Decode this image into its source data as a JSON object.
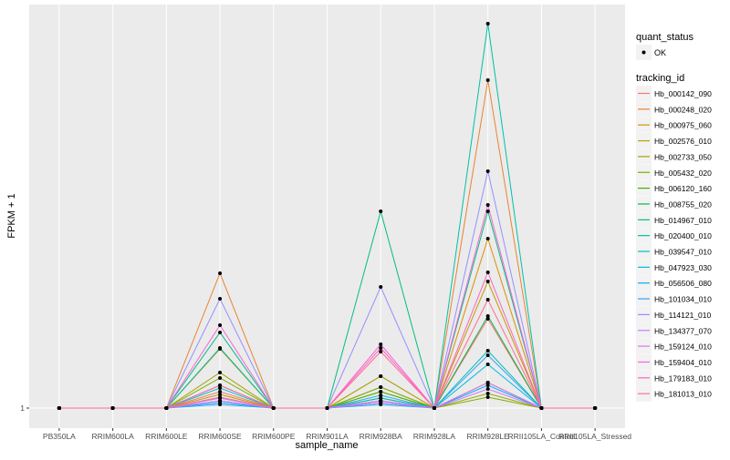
{
  "chart_data": {
    "type": "line",
    "title": "",
    "xlabel": "sample_name",
    "ylabel": "FPKM + 1",
    "y_ticks": [
      "1"
    ],
    "y_tick_values": [
      1
    ],
    "ylim": [
      -0.1,
      23.15
    ],
    "grid": true,
    "legend_placement": "right",
    "categories": [
      "PB350LA",
      "RRIM600LA",
      "RRIM600LE",
      "RRIM600SE",
      "RRIM600PE",
      "RRIM901LA",
      "RRIM928BA",
      "RRIM928LA",
      "RRIM928LE",
      "RRII105LA_Control",
      "RRII105LA_Stressed"
    ],
    "shape_legend": {
      "title": "quant_status",
      "items": [
        "OK"
      ]
    },
    "color_legend_title": "tracking_id",
    "series": [
      {
        "name": "Hb_000142_090",
        "color": "#F8766D",
        "values": [
          1,
          1,
          1,
          1.9,
          1,
          1,
          1.4,
          1,
          5.9,
          1,
          1
        ]
      },
      {
        "name": "Hb_000248_020",
        "color": "#EA8331",
        "values": [
          1,
          1,
          1,
          8.4,
          1,
          1,
          2.75,
          1,
          19.0,
          1,
          1
        ]
      },
      {
        "name": "Hb_000975_060",
        "color": "#D89000",
        "values": [
          1,
          1,
          1,
          4.25,
          1,
          1,
          2.15,
          1,
          10.3,
          1,
          1
        ]
      },
      {
        "name": "Hb_002576_010",
        "color": "#C09B00",
        "values": [
          1,
          1,
          1,
          1.75,
          1,
          1,
          1.9,
          1,
          7.95,
          1,
          1
        ]
      },
      {
        "name": "Hb_002733_050",
        "color": "#A3A500",
        "values": [
          1,
          1,
          1,
          2.95,
          1,
          1,
          2.75,
          1,
          1.8,
          1,
          1
        ]
      },
      {
        "name": "Hb_005432_020",
        "color": "#7CAE00",
        "values": [
          1,
          1,
          1,
          2.65,
          1,
          1,
          2.15,
          1,
          1.6,
          1,
          1
        ]
      },
      {
        "name": "Hb_006120_160",
        "color": "#39B600",
        "values": [
          1,
          1,
          1,
          2.25,
          1,
          1,
          1.9,
          1,
          2.4,
          1,
          1
        ]
      },
      {
        "name": "Hb_008755_020",
        "color": "#00BB4E",
        "values": [
          1,
          1,
          1,
          1.55,
          1,
          1,
          1.55,
          1,
          6.05,
          1,
          1
        ]
      },
      {
        "name": "Hb_014967_010",
        "color": "#00BF7D",
        "values": [
          1,
          1,
          1,
          5.15,
          1,
          1,
          11.8,
          1,
          11.8,
          1,
          1
        ]
      },
      {
        "name": "Hb_020400_010",
        "color": "#00C1A3",
        "values": [
          1,
          1,
          1,
          4.3,
          1,
          1,
          1.55,
          1,
          22.1,
          1,
          1
        ]
      },
      {
        "name": "Hb_039547_010",
        "color": "#00BFC4",
        "values": [
          1,
          1,
          1,
          2.1,
          1,
          1,
          1.4,
          1,
          4.15,
          1,
          1
        ]
      },
      {
        "name": "Hb_047923_030",
        "color": "#00BAE0",
        "values": [
          1,
          1,
          1,
          1.4,
          1,
          1,
          1.3,
          1,
          3.4,
          1,
          1
        ]
      },
      {
        "name": "Hb_056506_080",
        "color": "#00B0F6",
        "values": [
          1,
          1,
          1,
          1.3,
          1,
          1,
          1.2,
          1,
          2.25,
          1,
          1
        ]
      },
      {
        "name": "Hb_101034_010",
        "color": "#35A2FF",
        "values": [
          1,
          1,
          1,
          1.2,
          1,
          1,
          1.7,
          1,
          3.9,
          1,
          1
        ]
      },
      {
        "name": "Hb_114121_010",
        "color": "#9590FF",
        "values": [
          1,
          1,
          1,
          7.0,
          1,
          1,
          7.65,
          1,
          14.0,
          1,
          1
        ]
      },
      {
        "name": "Hb_134377_070",
        "color": "#C77CFF",
        "values": [
          1,
          1,
          1,
          1.55,
          1,
          1,
          1.4,
          1,
          2.05,
          1,
          1
        ]
      },
      {
        "name": "Hb_159124_010",
        "color": "#E76BF3",
        "values": [
          1,
          1,
          1,
          1.4,
          1,
          1,
          1.3,
          1,
          2.4,
          1,
          1
        ]
      },
      {
        "name": "Hb_159404_010",
        "color": "#FA62DB",
        "values": [
          1,
          1,
          1,
          5.55,
          1,
          1,
          4.5,
          1,
          12.15,
          1,
          1
        ]
      },
      {
        "name": "Hb_179183_010",
        "color": "#FF62BC",
        "values": [
          1,
          1,
          1,
          2.25,
          1,
          1,
          4.3,
          1,
          8.45,
          1,
          1
        ]
      },
      {
        "name": "Hb_181013_010",
        "color": "#FF6C91",
        "values": [
          1,
          1,
          1,
          1.6,
          1,
          1,
          4.1,
          1,
          6.95,
          1,
          1
        ]
      }
    ]
  }
}
